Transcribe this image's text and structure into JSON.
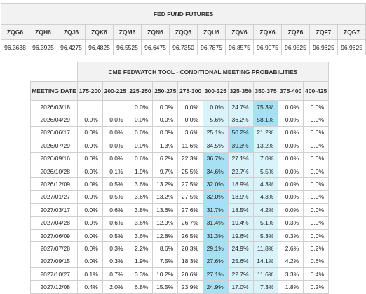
{
  "futures": {
    "title": "FED FUND FUTURES",
    "contracts": [
      "ZQG6",
      "ZQH6",
      "ZQJ6",
      "ZQK6",
      "ZQM6",
      "ZQN6",
      "ZQQ6",
      "ZQU6",
      "ZQV6",
      "ZQX6",
      "ZQZ6",
      "ZQF7",
      "ZQG7"
    ],
    "prices": [
      "96.3638",
      "96.3925",
      "96.4275",
      "96.4825",
      "96.5525",
      "96.6475",
      "96.7350",
      "96.7875",
      "96.8575",
      "96.9075",
      "96.9525",
      "96.9625",
      "96.9625"
    ]
  },
  "fedwatch": {
    "title": "CME FEDWATCH TOOL - CONDITIONAL MEETING PROBABILITIES",
    "date_header": "MEETING DATE",
    "ranges": [
      "175-200",
      "200-225",
      "225-250",
      "250-275",
      "275-300",
      "300-325",
      "325-350",
      "350-375",
      "375-400",
      "400-425"
    ],
    "highlight_color": "#d9f3fb",
    "max_color": "#a7e0f3",
    "rows": [
      {
        "date": "2026/03/18",
        "values": [
          "",
          "",
          "0.0%",
          "0.0%",
          "0.0%",
          "0.0%",
          "24.7%",
          "75.3%",
          "0.0%",
          "0.0%"
        ],
        "max": 7
      },
      {
        "date": "2026/04/29",
        "values": [
          "0.0%",
          "0.0%",
          "0.0%",
          "0.0%",
          "0.0%",
          "5.6%",
          "36.2%",
          "58.1%",
          "0.0%",
          "0.0%"
        ],
        "max": 7
      },
      {
        "date": "2026/06/17",
        "values": [
          "0.0%",
          "0.0%",
          "0.0%",
          "0.0%",
          "3.6%",
          "25.1%",
          "50.2%",
          "21.2%",
          "0.0%",
          "0.0%"
        ],
        "max": 6
      },
      {
        "date": "2026/07/29",
        "values": [
          "0.0%",
          "0.0%",
          "0.0%",
          "1.3%",
          "11.6%",
          "34.5%",
          "39.3%",
          "13.2%",
          "0.0%",
          "0.0%"
        ],
        "max": 6
      },
      {
        "date": "2026/09/16",
        "values": [
          "0.0%",
          "0.0%",
          "0.6%",
          "6.2%",
          "22.3%",
          "36.7%",
          "27.1%",
          "7.0%",
          "0.0%",
          "0.0%"
        ],
        "max": 5
      },
      {
        "date": "2026/10/28",
        "values": [
          "0.0%",
          "0.1%",
          "1.9%",
          "9.7%",
          "25.5%",
          "34.6%",
          "22.7%",
          "5.5%",
          "0.0%",
          "0.0%"
        ],
        "max": 5
      },
      {
        "date": "2026/12/09",
        "values": [
          "0.0%",
          "0.5%",
          "3.6%",
          "13.2%",
          "27.5%",
          "32.0%",
          "18.9%",
          "4.3%",
          "0.0%",
          "0.0%"
        ],
        "max": 5
      },
      {
        "date": "2027/01/27",
        "values": [
          "0.0%",
          "0.5%",
          "3.6%",
          "13.2%",
          "27.5%",
          "32.0%",
          "18.9%",
          "4.3%",
          "0.0%",
          "0.0%"
        ],
        "max": 5
      },
      {
        "date": "2027/03/17",
        "values": [
          "0.0%",
          "0.6%",
          "3.8%",
          "13.6%",
          "27.6%",
          "31.7%",
          "18.5%",
          "4.2%",
          "0.0%",
          "0.0%"
        ],
        "max": 5
      },
      {
        "date": "2027/04/28",
        "values": [
          "0.0%",
          "0.6%",
          "3.6%",
          "12.9%",
          "26.7%",
          "31.4%",
          "19.4%",
          "5.1%",
          "0.3%",
          "0.0%"
        ],
        "max": 5
      },
      {
        "date": "2027/06/09",
        "values": [
          "0.0%",
          "0.5%",
          "3.6%",
          "12.8%",
          "26.5%",
          "31.3%",
          "19.6%",
          "5.3%",
          "0.3%",
          "0.0%"
        ],
        "max": 5
      },
      {
        "date": "2027/07/28",
        "values": [
          "0.0%",
          "0.3%",
          "2.2%",
          "8.6%",
          "20.3%",
          "29.1%",
          "24.9%",
          "11.8%",
          "2.6%",
          "0.2%"
        ],
        "max": 5
      },
      {
        "date": "2027/09/15",
        "values": [
          "0.0%",
          "0.3%",
          "1.9%",
          "7.5%",
          "18.3%",
          "27.6%",
          "25.6%",
          "14.1%",
          "4.2%",
          "0.6%"
        ],
        "max": 5
      },
      {
        "date": "2027/10/27",
        "values": [
          "0.1%",
          "0.7%",
          "3.3%",
          "10.2%",
          "20.6%",
          "27.1%",
          "22.7%",
          "11.6%",
          "3.3%",
          "0.4%"
        ],
        "max": 5
      },
      {
        "date": "2027/12/08",
        "values": [
          "0.4%",
          "2.0%",
          "6.8%",
          "15.5%",
          "23.9%",
          "24.9%",
          "17.0%",
          "7.3%",
          "1.8%",
          "0.2%"
        ],
        "max": 5
      }
    ]
  }
}
